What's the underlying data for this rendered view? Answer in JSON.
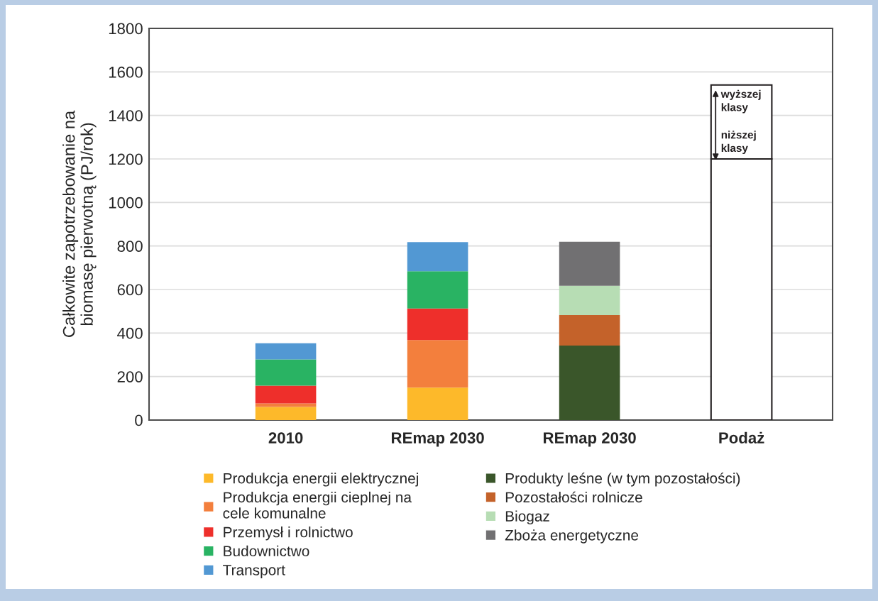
{
  "chart_data": {
    "type": "bar",
    "stacked": true,
    "ylabel": "Całkowite zapotrzebowanie na\nbiomasę pierwotną (PJ/rok)",
    "categories": [
      "2010",
      "REmap 2030",
      "REmap 2030",
      "Podaż"
    ],
    "series": [
      {
        "name": "Produkcja energii elektrycznej",
        "color": "#fdb92a",
        "values": [
          60,
          149,
          null,
          null
        ]
      },
      {
        "name": "Produkcja energii cieplnej na\ncele komunalne",
        "color": "#f37f3d",
        "values": [
          17,
          219,
          null,
          null
        ]
      },
      {
        "name": "Przemysł i rolnictwo",
        "color": "#ee2f2b",
        "values": [
          81,
          145,
          null,
          null
        ]
      },
      {
        "name": "Budownictwo",
        "color": "#29b363",
        "values": [
          121,
          171,
          null,
          null
        ]
      },
      {
        "name": "Transport",
        "color": "#5298d3",
        "values": [
          74,
          134,
          null,
          null
        ]
      },
      {
        "name": "Produkty leśne (w tym pozostałości)",
        "color": "#3a562a",
        "values": [
          null,
          null,
          342,
          null
        ]
      },
      {
        "name": "Pozostałości rolnicze",
        "color": "#c4622a",
        "values": [
          null,
          null,
          141,
          null
        ]
      },
      {
        "name": "Biogaz",
        "color": "#b7ddb4",
        "values": [
          null,
          null,
          134,
          null
        ]
      },
      {
        "name": "Zboża energetyczne",
        "color": "#717072",
        "values": [
          null,
          null,
          202,
          null
        ]
      },
      {
        "color": "#ffffff",
        "values": [
          null,
          null,
          null,
          1200
        ]
      },
      {
        "color": "#ffffff",
        "values": [
          null,
          null,
          null,
          340
        ]
      }
    ],
    "annotations": [
      {
        "text": "wyższej\nklasy",
        "x": "Podaż",
        "y": 1540
      },
      {
        "text": "niższej\nklasy",
        "x": "Podaż",
        "y": 1200
      }
    ],
    "ylim": [
      0,
      1800
    ],
    "yticks": [
      0,
      200,
      400,
      600,
      800,
      1000,
      1200,
      1400,
      1600,
      1800
    ],
    "grid": "y",
    "legend": "bottom"
  }
}
